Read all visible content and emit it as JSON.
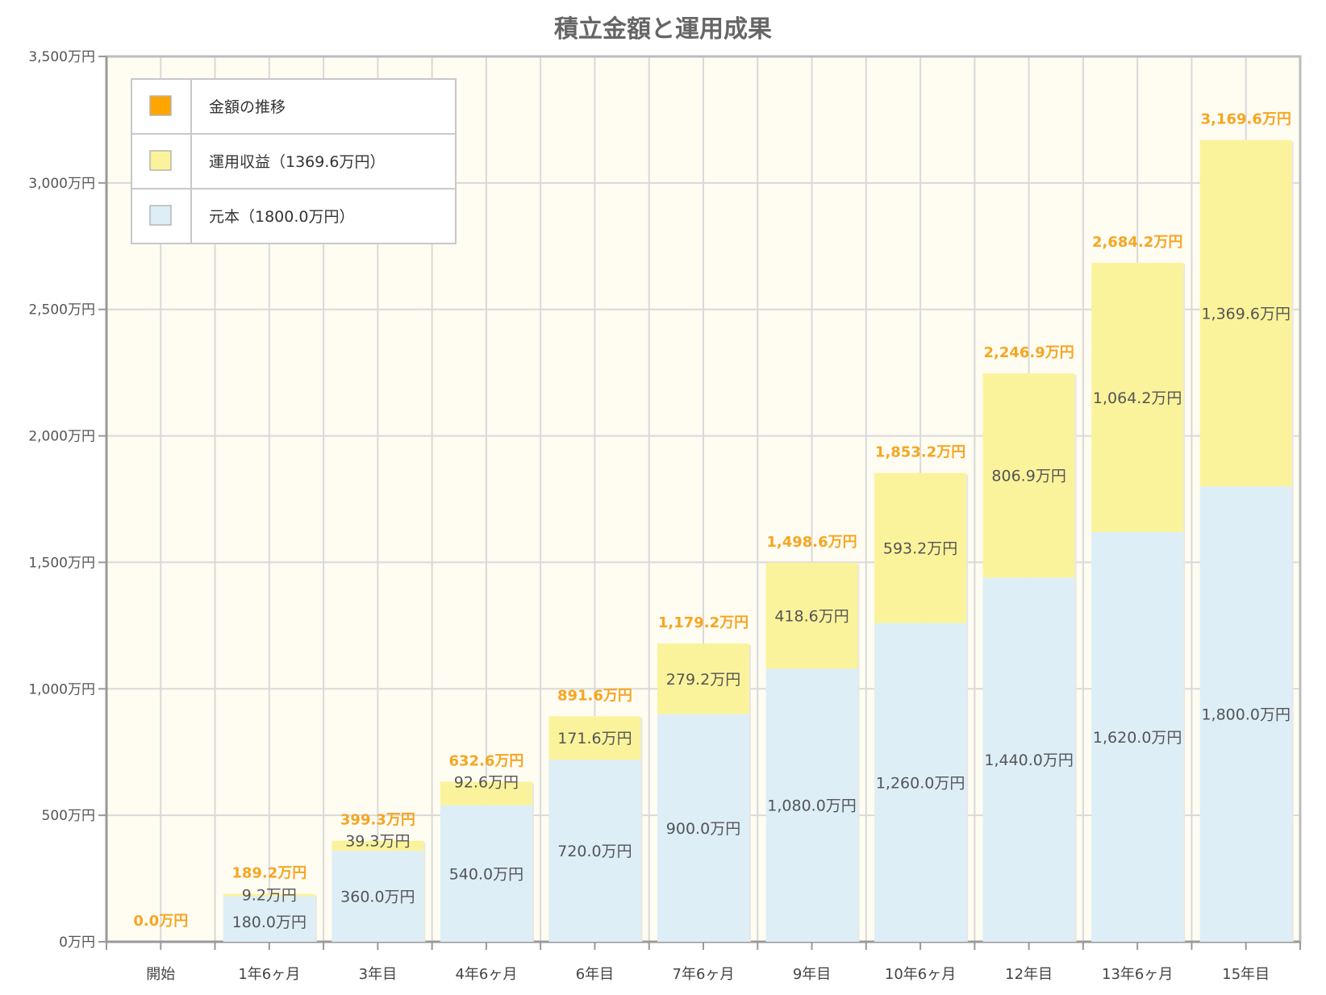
{
  "chart_data": {
    "type": "bar",
    "stacked": true,
    "title": "積立金額と運用成果",
    "categories": [
      "開始",
      "1年6ヶ月",
      "3年目",
      "4年6ヶ月",
      "6年目",
      "7年6ヶ月",
      "9年目",
      "10年6ヶ月",
      "12年目",
      "13年6ヶ月",
      "15年目"
    ],
    "series": [
      {
        "name": "元本（1800.0万円）",
        "color": "#ddeef6",
        "values": [
          0,
          180.0,
          360.0,
          540.0,
          720.0,
          900.0,
          1080.0,
          1260.0,
          1440.0,
          1620.0,
          1800.0
        ],
        "labels": [
          "",
          "180.0万円",
          "360.0万円",
          "540.0万円",
          "720.0万円",
          "900.0万円",
          "1,080.0万円",
          "1,260.0万円",
          "1,440.0万円",
          "1,620.0万円",
          "1,800.0万円"
        ]
      },
      {
        "name": "運用収益（1369.6万円）",
        "color": "#fbf39b",
        "values": [
          0,
          9.2,
          39.3,
          92.6,
          171.6,
          279.2,
          418.6,
          593.2,
          806.9,
          1064.2,
          1369.6
        ],
        "labels": [
          "",
          "9.2万円",
          "39.3万円",
          "92.6万円",
          "171.6万円",
          "279.2万円",
          "418.6万円",
          "593.2万円",
          "806.9万円",
          "1,064.2万円",
          "1,369.6万円"
        ]
      }
    ],
    "totals": {
      "name": "金額の推移",
      "color": "#ffa500",
      "values": [
        0.0,
        189.2,
        399.3,
        632.6,
        891.6,
        1179.2,
        1498.6,
        1853.2,
        2246.9,
        2684.2,
        3169.6
      ],
      "labels": [
        "0.0万円",
        "189.2万円",
        "399.3万円",
        "632.6万円",
        "891.6万円",
        "1,179.2万円",
        "1,498.6万円",
        "1,853.2万円",
        "2,246.9万円",
        "2,684.2万円",
        "3,169.6万円"
      ]
    },
    "ylim": [
      0,
      3500
    ],
    "yticks": [
      0,
      500,
      1000,
      1500,
      2000,
      2500,
      3000,
      3500
    ],
    "ytick_labels": [
      "0万円",
      "500万円",
      "1,000万円",
      "1,500万円",
      "2,000万円",
      "2,500万円",
      "3,000万円",
      "3,500万円"
    ],
    "grid": true,
    "legend_position": "top-left",
    "legend": [
      {
        "label": "金額の推移",
        "color": "#ffa500"
      },
      {
        "label": "運用収益（1369.6万円）",
        "color": "#fbf39b"
      },
      {
        "label": "元本（1800.0万円）",
        "color": "#ddeef6"
      }
    ],
    "plot_background": "#fffcf2"
  }
}
